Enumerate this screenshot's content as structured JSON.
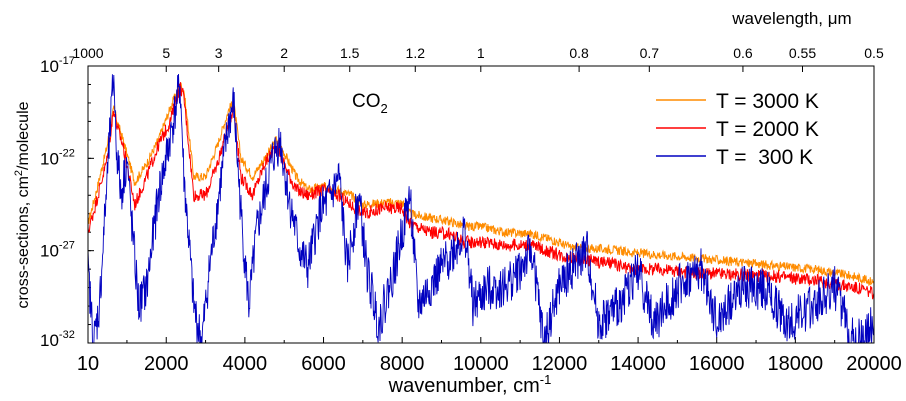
{
  "chart_data": {
    "type": "line",
    "title": "",
    "annotation": {
      "base": "CO",
      "sub": "2"
    },
    "xlabel": {
      "base": "wavenumber, cm",
      "sup": "-1"
    },
    "ylabel": {
      "base": "cross-sections, cm",
      "sup": "2",
      "rest": "/molecule"
    },
    "top_xlabel": {
      "base": "wavelength, ",
      "unit": "μm"
    },
    "xlim": [
      10,
      20000
    ],
    "ylim": [
      1e-32,
      1e-17
    ],
    "y_scale": "log",
    "x_ticks": [
      {
        "value": 10,
        "label": "10"
      },
      {
        "value": 2000,
        "label": "2000"
      },
      {
        "value": 4000,
        "label": "4000"
      },
      {
        "value": 6000,
        "label": "6000"
      },
      {
        "value": 8000,
        "label": "8000"
      },
      {
        "value": 10000,
        "label": "10000"
      },
      {
        "value": 12000,
        "label": "12000"
      },
      {
        "value": 14000,
        "label": "14000"
      },
      {
        "value": 16000,
        "label": "16000"
      },
      {
        "value": 18000,
        "label": "18000"
      },
      {
        "value": 20000,
        "label": "20000"
      }
    ],
    "y_ticks": [
      {
        "value": 1e-32,
        "base": "10",
        "exp": "-32"
      },
      {
        "value": 1e-27,
        "base": "10",
        "exp": "-27"
      },
      {
        "value": 1e-22,
        "base": "10",
        "exp": "-22"
      },
      {
        "value": 1e-17,
        "base": "10",
        "exp": "-17"
      }
    ],
    "top_ticks": [
      {
        "wavelength_um": 1000,
        "label": "1000"
      },
      {
        "wavelength_um": 5,
        "label": "5"
      },
      {
        "wavelength_um": 3,
        "label": "3"
      },
      {
        "wavelength_um": 2,
        "label": "2"
      },
      {
        "wavelength_um": 1.5,
        "label": "1.5"
      },
      {
        "wavelength_um": 1.2,
        "label": "1.2"
      },
      {
        "wavelength_um": 1,
        "label": "1"
      },
      {
        "wavelength_um": 0.8,
        "label": "0.8"
      },
      {
        "wavelength_um": 0.7,
        "label": "0.7"
      },
      {
        "wavelength_um": 0.6,
        "label": "0.6"
      },
      {
        "wavelength_um": 0.55,
        "label": "0.55"
      },
      {
        "wavelength_um": 0.5,
        "label": "0.5"
      }
    ],
    "legend_position": "top-right",
    "grid": false,
    "series": [
      {
        "name": "T = 3000 K",
        "color": "#ff8c00",
        "points": [
          [
            10,
            3e-26
          ],
          [
            200,
            1e-24
          ],
          [
            500,
            5e-22
          ],
          [
            667,
            5e-20
          ],
          [
            750,
            1e-20
          ],
          [
            900,
            1e-21
          ],
          [
            1200,
            5e-24
          ],
          [
            1500,
            5e-23
          ],
          [
            1800,
            1e-21
          ],
          [
            2100,
            5e-20
          ],
          [
            2349,
            1e-18
          ],
          [
            2450,
            5e-19
          ],
          [
            2700,
            1e-23
          ],
          [
            3000,
            1e-23
          ],
          [
            3300,
            5e-22
          ],
          [
            3600,
            5e-20
          ],
          [
            3715,
            1e-19
          ],
          [
            3900,
            1e-22
          ],
          [
            4200,
            1e-23
          ],
          [
            4500,
            1e-22
          ],
          [
            4800,
            1e-21
          ],
          [
            5000,
            2e-22
          ],
          [
            5300,
            1e-23
          ],
          [
            5600,
            2e-24
          ],
          [
            6000,
            3e-24
          ],
          [
            6350,
            2e-24
          ],
          [
            6700,
            1e-24
          ],
          [
            7000,
            3e-25
          ],
          [
            7500,
            4e-25
          ],
          [
            8000,
            4e-25
          ],
          [
            8200,
            1e-25
          ],
          [
            8700,
            6e-26
          ],
          [
            9200,
            4e-26
          ],
          [
            9600,
            2e-26
          ],
          [
            10000,
            2e-26
          ],
          [
            10600,
            1e-26
          ],
          [
            11300,
            8e-27
          ],
          [
            11800,
            4e-27
          ],
          [
            12300,
            1.5e-27
          ],
          [
            12800,
            1.3e-27
          ],
          [
            13300,
            1.2e-27
          ],
          [
            13800,
            8e-28
          ],
          [
            14500,
            6e-28
          ],
          [
            15500,
            4e-28
          ],
          [
            16500,
            2.5e-28
          ],
          [
            17500,
            1.5e-28
          ],
          [
            18500,
            1e-28
          ],
          [
            19500,
            4e-29
          ],
          [
            20000,
            2e-29
          ]
        ]
      },
      {
        "name": "T = 2000 K",
        "color": "#ff0000",
        "points": [
          [
            10,
            1e-26
          ],
          [
            200,
            3e-25
          ],
          [
            500,
            1e-22
          ],
          [
            667,
            5e-20
          ],
          [
            750,
            5e-21
          ],
          [
            900,
            5e-22
          ],
          [
            1200,
            3e-25
          ],
          [
            1500,
            1e-23
          ],
          [
            1800,
            5e-22
          ],
          [
            2100,
            1e-20
          ],
          [
            2349,
            8e-19
          ],
          [
            2450,
            2e-19
          ],
          [
            2700,
            1e-24
          ],
          [
            3000,
            1e-24
          ],
          [
            3300,
            5e-23
          ],
          [
            3600,
            1e-20
          ],
          [
            3715,
            5e-20
          ],
          [
            3900,
            1e-23
          ],
          [
            4200,
            1e-24
          ],
          [
            4500,
            5e-23
          ],
          [
            4800,
            5e-22
          ],
          [
            5000,
            5e-23
          ],
          [
            5300,
            2e-24
          ],
          [
            5600,
            1e-24
          ],
          [
            6000,
            2e-24
          ],
          [
            6350,
            1e-24
          ],
          [
            6700,
            3e-25
          ],
          [
            7000,
            1e-25
          ],
          [
            7500,
            2e-25
          ],
          [
            8000,
            2e-25
          ],
          [
            8200,
            3e-26
          ],
          [
            8700,
            1e-26
          ],
          [
            9200,
            8e-27
          ],
          [
            9600,
            3e-27
          ],
          [
            10000,
            3e-27
          ],
          [
            10600,
            2e-27
          ],
          [
            11300,
            2e-27
          ],
          [
            11800,
            8e-28
          ],
          [
            12300,
            4e-28
          ],
          [
            12800,
            3e-28
          ],
          [
            13300,
            2e-28
          ],
          [
            13800,
            1e-28
          ],
          [
            14500,
            1e-28
          ],
          [
            15500,
            6e-29
          ],
          [
            16500,
            5e-29
          ],
          [
            17500,
            4e-29
          ],
          [
            18500,
            2.5e-29
          ],
          [
            19500,
            1e-29
          ],
          [
            20000,
            5e-30
          ]
        ]
      },
      {
        "name": "T =  300 K",
        "color": "#0000c0",
        "points": [
          [
            10,
            1e-28
          ],
          [
            150,
            1e-32
          ],
          [
            300,
            1e-30
          ],
          [
            500,
            1e-23
          ],
          [
            667,
            5e-18
          ],
          [
            720,
            1e-21
          ],
          [
            850,
            1e-24
          ],
          [
            1000,
            1e-22
          ],
          [
            1100,
            1e-25
          ],
          [
            1300,
            1e-30
          ],
          [
            1500,
            1e-29
          ],
          [
            1800,
            1e-24
          ],
          [
            2000,
            1e-22
          ],
          [
            2349,
            1e-18
          ],
          [
            2450,
            1e-23
          ],
          [
            2700,
            1e-30
          ],
          [
            2900,
            1e-32
          ],
          [
            3100,
            1e-28
          ],
          [
            3400,
            1e-23
          ],
          [
            3600,
            1e-20
          ],
          [
            3715,
            1e-19
          ],
          [
            3900,
            1e-25
          ],
          [
            4100,
            1e-30
          ],
          [
            4300,
            1e-26
          ],
          [
            4500,
            1e-24
          ],
          [
            4700,
            1e-22
          ],
          [
            4900,
            1e-21
          ],
          [
            5100,
            1e-24
          ],
          [
            5400,
            1e-27
          ],
          [
            5600,
            1e-28
          ],
          [
            5900,
            1e-25
          ],
          [
            6200,
            1e-24
          ],
          [
            6400,
            1e-23
          ],
          [
            6600,
            1e-28
          ],
          [
            6900,
            1e-24
          ],
          [
            7100,
            1e-28
          ],
          [
            7400,
            1e-31
          ],
          [
            7800,
            1e-28
          ],
          [
            8000,
            1e-26
          ],
          [
            8200,
            1e-24
          ],
          [
            8400,
            1e-30
          ],
          [
            8700,
            1e-29
          ],
          [
            9000,
            1e-28
          ],
          [
            9300,
            1e-27
          ],
          [
            9600,
            1e-26
          ],
          [
            9800,
            1e-30
          ],
          [
            10200,
            1e-29
          ],
          [
            10600,
            1e-29
          ],
          [
            11000,
            1e-28
          ],
          [
            11300,
            1e-27
          ],
          [
            11600,
            1e-32
          ],
          [
            12000,
            1e-29
          ],
          [
            12300,
            1e-28
          ],
          [
            12700,
            1e-27
          ],
          [
            13000,
            1e-31
          ],
          [
            13500,
            1e-30
          ],
          [
            14000,
            1e-28
          ],
          [
            14400,
            1e-31
          ],
          [
            15000,
            1e-29
          ],
          [
            15600,
            1e-28
          ],
          [
            16000,
            1e-31
          ],
          [
            16600,
            1e-29
          ],
          [
            17200,
            1e-29
          ],
          [
            17800,
            1e-31
          ],
          [
            18400,
            1e-30
          ],
          [
            19000,
            1e-29
          ],
          [
            19500,
            1e-32
          ],
          [
            20000,
            1e-31
          ]
        ]
      }
    ]
  }
}
